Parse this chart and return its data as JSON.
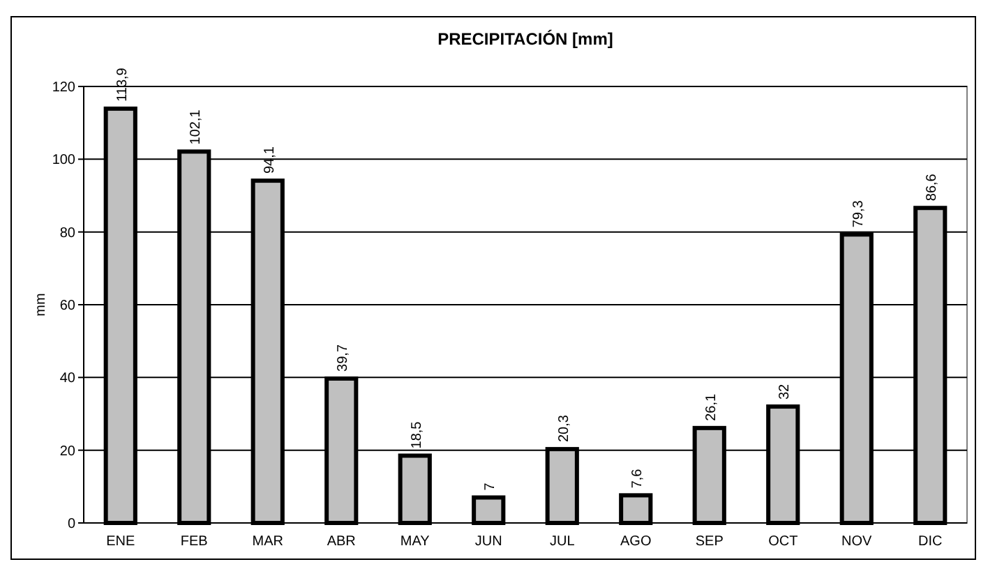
{
  "chart_data": {
    "type": "bar",
    "title": "PRECIPITACIÓN [mm]",
    "ylabel": "mm",
    "categories": [
      "ENE",
      "FEB",
      "MAR",
      "ABR",
      "MAY",
      "JUN",
      "JUL",
      "AGO",
      "SEP",
      "OCT",
      "NOV",
      "DIC"
    ],
    "values": [
      113.9,
      102.1,
      94.1,
      39.7,
      18.5,
      7,
      20.3,
      7.6,
      26.1,
      32,
      79.3,
      86.6
    ],
    "value_labels": [
      "113,9",
      "102,1",
      "94,1",
      "39,7",
      "18,5",
      "7",
      "20,3",
      "7,6",
      "26,1",
      "32",
      "79,3",
      "86,6"
    ],
    "color": "#c0c0c0",
    "ylim": [
      0,
      120
    ],
    "yticks": [
      0,
      20,
      40,
      60,
      80,
      100,
      120
    ],
    "grid": "y"
  }
}
